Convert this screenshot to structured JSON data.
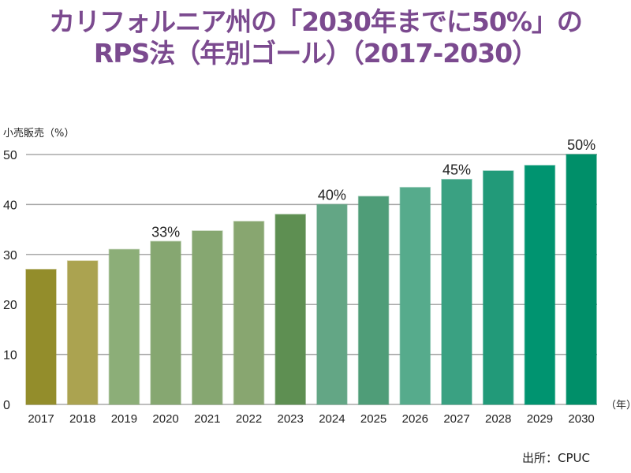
{
  "title_lines": [
    "カリフォルニア州の「2030年までに50%」の",
    "RPS法（年別ゴール）（2017-2030）"
  ],
  "source": "出所：CPUC",
  "chart_data": {
    "type": "bar",
    "title": "カリフォルニア州の「2030年までに50%」のRPS法（年別ゴール）（2017-2030）",
    "ylabel": "小売販売（%）",
    "xlabel": "（年）",
    "ylim": [
      0,
      50
    ],
    "yticks": [
      0,
      10,
      20,
      30,
      40,
      50
    ],
    "grid": true,
    "categories": [
      "2017",
      "2018",
      "2019",
      "2020",
      "2021",
      "2022",
      "2023",
      "2024",
      "2025",
      "2026",
      "2027",
      "2028",
      "2029",
      "2030"
    ],
    "values": [
      27,
      28.7,
      31,
      32.6,
      34.7,
      36.6,
      38,
      40,
      41.6,
      43.4,
      45,
      46.7,
      47.8,
      50
    ],
    "colors": [
      "#938d2b",
      "#aba350",
      "#8cae78",
      "#86a771",
      "#86a771",
      "#88a670",
      "#5e8f52",
      "#63a685",
      "#4f9d78",
      "#56ab8c",
      "#3aa182",
      "#229a79",
      "#009470",
      "#008f69"
    ],
    "data_labels": [
      {
        "category": "2020",
        "text": "33%"
      },
      {
        "category": "2024",
        "text": "40%"
      },
      {
        "category": "2027",
        "text": "45%"
      },
      {
        "category": "2030",
        "text": "50%"
      }
    ]
  }
}
